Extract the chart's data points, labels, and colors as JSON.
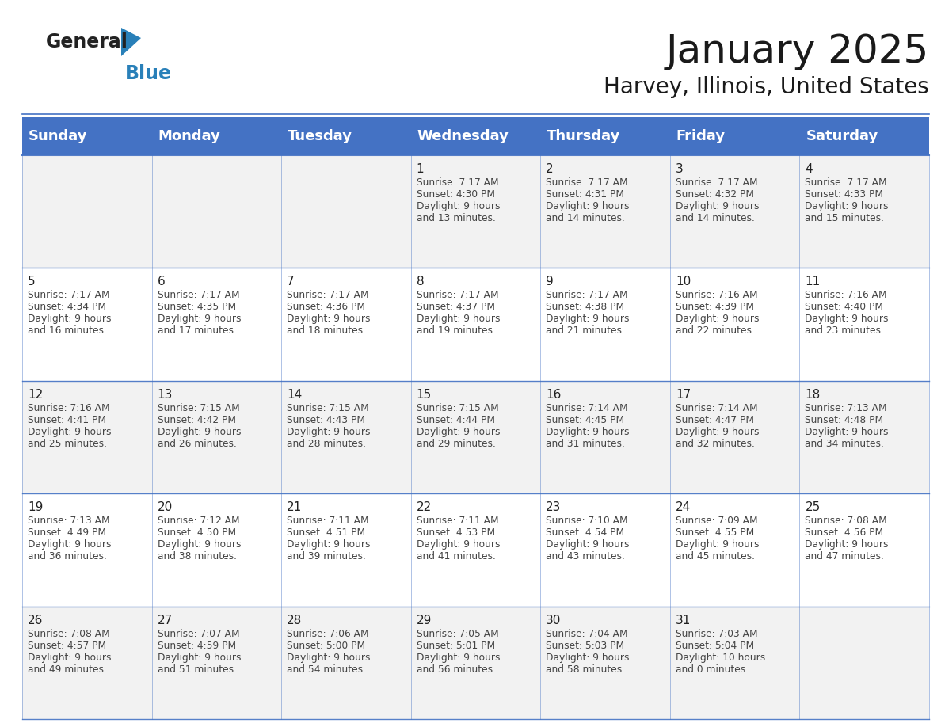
{
  "title": "January 2025",
  "subtitle": "Harvey, Illinois, United States",
  "header_bg": "#4472C4",
  "header_text_color": "#FFFFFF",
  "header_font_size": 13,
  "day_names": [
    "Sunday",
    "Monday",
    "Tuesday",
    "Wednesday",
    "Thursday",
    "Friday",
    "Saturday"
  ],
  "title_font_size": 36,
  "subtitle_font_size": 20,
  "cell_text_color": "#444444",
  "day_num_color": "#222222",
  "row_colors": [
    "#f2f2f2",
    "#ffffff",
    "#f2f2f2",
    "#ffffff",
    "#f2f2f2"
  ],
  "logo_general_color": "#222222",
  "logo_blue_color": "#2980b9",
  "line_color": "#4472C4",
  "days": [
    {
      "date": 1,
      "col": 3,
      "row": 0,
      "sunrise": "7:17 AM",
      "sunset": "4:30 PM",
      "daylight": "9 hours and 13 minutes."
    },
    {
      "date": 2,
      "col": 4,
      "row": 0,
      "sunrise": "7:17 AM",
      "sunset": "4:31 PM",
      "daylight": "9 hours and 14 minutes."
    },
    {
      "date": 3,
      "col": 5,
      "row": 0,
      "sunrise": "7:17 AM",
      "sunset": "4:32 PM",
      "daylight": "9 hours and 14 minutes."
    },
    {
      "date": 4,
      "col": 6,
      "row": 0,
      "sunrise": "7:17 AM",
      "sunset": "4:33 PM",
      "daylight": "9 hours and 15 minutes."
    },
    {
      "date": 5,
      "col": 0,
      "row": 1,
      "sunrise": "7:17 AM",
      "sunset": "4:34 PM",
      "daylight": "9 hours and 16 minutes."
    },
    {
      "date": 6,
      "col": 1,
      "row": 1,
      "sunrise": "7:17 AM",
      "sunset": "4:35 PM",
      "daylight": "9 hours and 17 minutes."
    },
    {
      "date": 7,
      "col": 2,
      "row": 1,
      "sunrise": "7:17 AM",
      "sunset": "4:36 PM",
      "daylight": "9 hours and 18 minutes."
    },
    {
      "date": 8,
      "col": 3,
      "row": 1,
      "sunrise": "7:17 AM",
      "sunset": "4:37 PM",
      "daylight": "9 hours and 19 minutes."
    },
    {
      "date": 9,
      "col": 4,
      "row": 1,
      "sunrise": "7:17 AM",
      "sunset": "4:38 PM",
      "daylight": "9 hours and 21 minutes."
    },
    {
      "date": 10,
      "col": 5,
      "row": 1,
      "sunrise": "7:16 AM",
      "sunset": "4:39 PM",
      "daylight": "9 hours and 22 minutes."
    },
    {
      "date": 11,
      "col": 6,
      "row": 1,
      "sunrise": "7:16 AM",
      "sunset": "4:40 PM",
      "daylight": "9 hours and 23 minutes."
    },
    {
      "date": 12,
      "col": 0,
      "row": 2,
      "sunrise": "7:16 AM",
      "sunset": "4:41 PM",
      "daylight": "9 hours and 25 minutes."
    },
    {
      "date": 13,
      "col": 1,
      "row": 2,
      "sunrise": "7:15 AM",
      "sunset": "4:42 PM",
      "daylight": "9 hours and 26 minutes."
    },
    {
      "date": 14,
      "col": 2,
      "row": 2,
      "sunrise": "7:15 AM",
      "sunset": "4:43 PM",
      "daylight": "9 hours and 28 minutes."
    },
    {
      "date": 15,
      "col": 3,
      "row": 2,
      "sunrise": "7:15 AM",
      "sunset": "4:44 PM",
      "daylight": "9 hours and 29 minutes."
    },
    {
      "date": 16,
      "col": 4,
      "row": 2,
      "sunrise": "7:14 AM",
      "sunset": "4:45 PM",
      "daylight": "9 hours and 31 minutes."
    },
    {
      "date": 17,
      "col": 5,
      "row": 2,
      "sunrise": "7:14 AM",
      "sunset": "4:47 PM",
      "daylight": "9 hours and 32 minutes."
    },
    {
      "date": 18,
      "col": 6,
      "row": 2,
      "sunrise": "7:13 AM",
      "sunset": "4:48 PM",
      "daylight": "9 hours and 34 minutes."
    },
    {
      "date": 19,
      "col": 0,
      "row": 3,
      "sunrise": "7:13 AM",
      "sunset": "4:49 PM",
      "daylight": "9 hours and 36 minutes."
    },
    {
      "date": 20,
      "col": 1,
      "row": 3,
      "sunrise": "7:12 AM",
      "sunset": "4:50 PM",
      "daylight": "9 hours and 38 minutes."
    },
    {
      "date": 21,
      "col": 2,
      "row": 3,
      "sunrise": "7:11 AM",
      "sunset": "4:51 PM",
      "daylight": "9 hours and 39 minutes."
    },
    {
      "date": 22,
      "col": 3,
      "row": 3,
      "sunrise": "7:11 AM",
      "sunset": "4:53 PM",
      "daylight": "9 hours and 41 minutes."
    },
    {
      "date": 23,
      "col": 4,
      "row": 3,
      "sunrise": "7:10 AM",
      "sunset": "4:54 PM",
      "daylight": "9 hours and 43 minutes."
    },
    {
      "date": 24,
      "col": 5,
      "row": 3,
      "sunrise": "7:09 AM",
      "sunset": "4:55 PM",
      "daylight": "9 hours and 45 minutes."
    },
    {
      "date": 25,
      "col": 6,
      "row": 3,
      "sunrise": "7:08 AM",
      "sunset": "4:56 PM",
      "daylight": "9 hours and 47 minutes."
    },
    {
      "date": 26,
      "col": 0,
      "row": 4,
      "sunrise": "7:08 AM",
      "sunset": "4:57 PM",
      "daylight": "9 hours and 49 minutes."
    },
    {
      "date": 27,
      "col": 1,
      "row": 4,
      "sunrise": "7:07 AM",
      "sunset": "4:59 PM",
      "daylight": "9 hours and 51 minutes."
    },
    {
      "date": 28,
      "col": 2,
      "row": 4,
      "sunrise": "7:06 AM",
      "sunset": "5:00 PM",
      "daylight": "9 hours and 54 minutes."
    },
    {
      "date": 29,
      "col": 3,
      "row": 4,
      "sunrise": "7:05 AM",
      "sunset": "5:01 PM",
      "daylight": "9 hours and 56 minutes."
    },
    {
      "date": 30,
      "col": 4,
      "row": 4,
      "sunrise": "7:04 AM",
      "sunset": "5:03 PM",
      "daylight": "9 hours and 58 minutes."
    },
    {
      "date": 31,
      "col": 5,
      "row": 4,
      "sunrise": "7:03 AM",
      "sunset": "5:04 PM",
      "daylight": "10 hours and 0 minutes."
    }
  ]
}
